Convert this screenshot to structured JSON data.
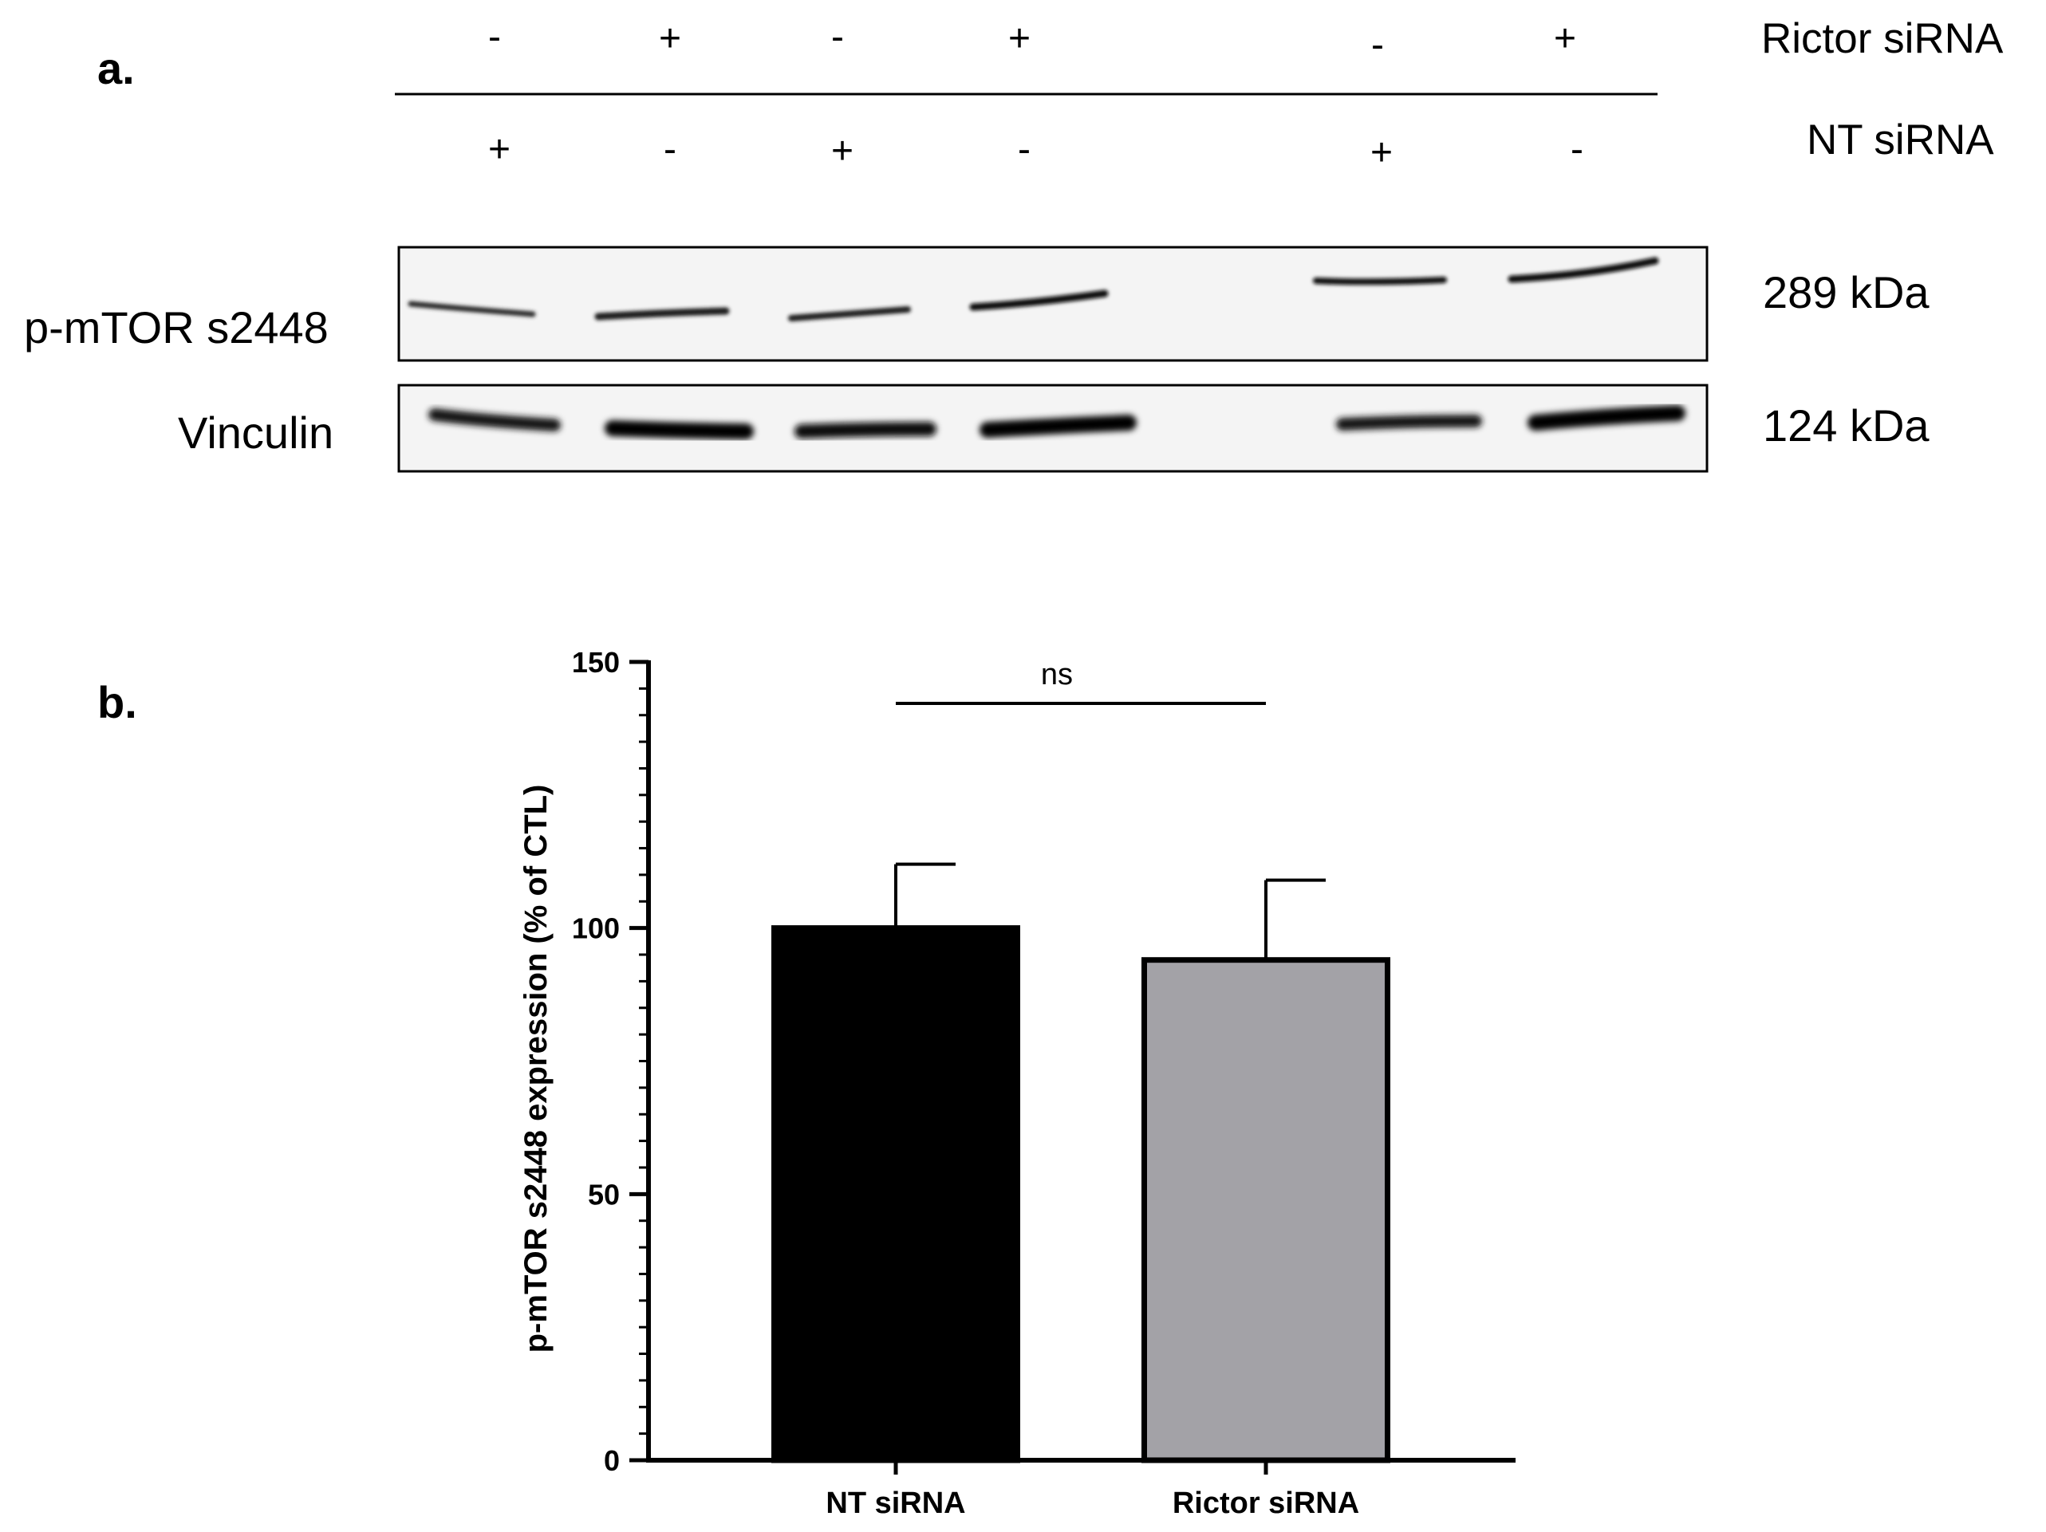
{
  "panel_a": {
    "label": "a.",
    "row_labels": {
      "rictor": "Rictor siRNA",
      "nt": "NT siRNA"
    },
    "rictor_signs": [
      "-",
      "+",
      "-",
      "+",
      "-",
      "+"
    ],
    "nt_signs": [
      "+",
      "-",
      "+",
      "-",
      "+",
      "-"
    ],
    "blots": [
      {
        "label": "p-mTOR s2448",
        "kda": "289 kDa"
      },
      {
        "label": "Vinculin",
        "kda": "124 kDa"
      }
    ]
  },
  "panel_b": {
    "label": "b."
  },
  "chart_data": {
    "type": "bar",
    "categories": [
      "NT siRNA",
      "Rictor siRNA"
    ],
    "values": [
      100,
      94
    ],
    "errors": [
      12,
      15
    ],
    "colors": [
      "#000000",
      "#a3a2a7"
    ],
    "ylabel": "p-mTOR s2448 expression (% of  CTL)",
    "xlabel": "",
    "ylim": [
      0,
      150
    ],
    "yticks": [
      "0",
      "50",
      "100",
      "150"
    ],
    "significance": {
      "label": "ns",
      "between": [
        "NT siRNA",
        "Rictor siRNA"
      ]
    },
    "grid": false
  }
}
